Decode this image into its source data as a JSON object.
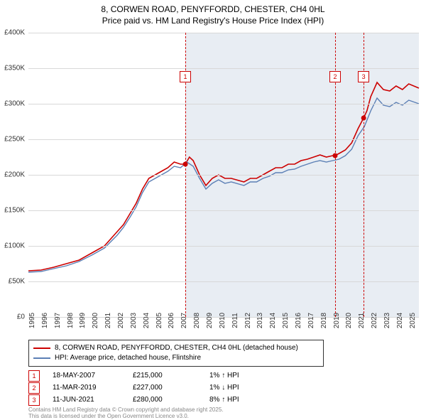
{
  "title_line1": "8, CORWEN ROAD, PENYFFORDD, CHESTER, CH4 0HL",
  "title_line2": "Price paid vs. HM Land Registry's House Price Index (HPI)",
  "chart": {
    "type": "line",
    "background_color": "#ffffff",
    "shaded_background_color": "#e8edf3",
    "grid_color": "#d8d8d8",
    "x_min": 1995,
    "x_max": 2025.8,
    "x_ticks": [
      1995,
      1996,
      1997,
      1998,
      1999,
      2000,
      2001,
      2002,
      2003,
      2004,
      2005,
      2006,
      2007,
      2008,
      2009,
      2010,
      2011,
      2012,
      2013,
      2014,
      2015,
      2016,
      2017,
      2018,
      2019,
      2020,
      2021,
      2022,
      2023,
      2024,
      2025
    ],
    "y_min": 0,
    "y_max": 400,
    "y_ticks": [
      0,
      50,
      100,
      150,
      200,
      250,
      300,
      350,
      400
    ],
    "y_tick_labels": [
      "£0",
      "£50K",
      "£100K",
      "£150K",
      "£200K",
      "£250K",
      "£300K",
      "£350K",
      "£400K"
    ],
    "axis_fontsize": 10,
    "series": [
      {
        "name": "8, CORWEN ROAD, PENYFFORDD, CHESTER, CH4 0HL (detached house)",
        "color": "#cc0000",
        "line_width": 1.6,
        "points": [
          [
            1995,
            65
          ],
          [
            1996,
            66
          ],
          [
            1997,
            70
          ],
          [
            1998,
            75
          ],
          [
            1999,
            80
          ],
          [
            2000,
            90
          ],
          [
            2001,
            100
          ],
          [
            2002,
            120
          ],
          [
            2002.5,
            130
          ],
          [
            2003,
            145
          ],
          [
            2003.5,
            160
          ],
          [
            2004,
            180
          ],
          [
            2004.5,
            195
          ],
          [
            2005,
            200
          ],
          [
            2005.5,
            205
          ],
          [
            2006,
            210
          ],
          [
            2006.5,
            218
          ],
          [
            2007,
            215
          ],
          [
            2007.38,
            215
          ],
          [
            2007.7,
            225
          ],
          [
            2008,
            220
          ],
          [
            2008.5,
            200
          ],
          [
            2009,
            185
          ],
          [
            2009.5,
            195
          ],
          [
            2010,
            200
          ],
          [
            2010.5,
            195
          ],
          [
            2011,
            195
          ],
          [
            2012,
            190
          ],
          [
            2012.5,
            195
          ],
          [
            2013,
            195
          ],
          [
            2013.5,
            200
          ],
          [
            2014,
            205
          ],
          [
            2014.5,
            210
          ],
          [
            2015,
            210
          ],
          [
            2015.5,
            215
          ],
          [
            2016,
            215
          ],
          [
            2016.5,
            220
          ],
          [
            2017,
            222
          ],
          [
            2017.5,
            225
          ],
          [
            2018,
            228
          ],
          [
            2018.5,
            225
          ],
          [
            2019,
            227
          ],
          [
            2019.19,
            227
          ],
          [
            2019.5,
            230
          ],
          [
            2020,
            235
          ],
          [
            2020.5,
            245
          ],
          [
            2021,
            265
          ],
          [
            2021.44,
            280
          ],
          [
            2021.7,
            290
          ],
          [
            2022,
            310
          ],
          [
            2022.5,
            330
          ],
          [
            2023,
            320
          ],
          [
            2023.5,
            318
          ],
          [
            2024,
            325
          ],
          [
            2024.5,
            320
          ],
          [
            2025,
            328
          ],
          [
            2025.8,
            322
          ]
        ]
      },
      {
        "name": "HPI: Average price, detached house, Flintshire",
        "color": "#5b7fb5",
        "line_width": 1.4,
        "points": [
          [
            1995,
            63
          ],
          [
            1996,
            64
          ],
          [
            1997,
            68
          ],
          [
            1998,
            72
          ],
          [
            1999,
            78
          ],
          [
            2000,
            87
          ],
          [
            2001,
            97
          ],
          [
            2002,
            115
          ],
          [
            2002.5,
            126
          ],
          [
            2003,
            140
          ],
          [
            2003.5,
            155
          ],
          [
            2004,
            175
          ],
          [
            2004.5,
            190
          ],
          [
            2005,
            195
          ],
          [
            2005.5,
            200
          ],
          [
            2006,
            205
          ],
          [
            2006.5,
            212
          ],
          [
            2007,
            210
          ],
          [
            2007.5,
            218
          ],
          [
            2008,
            212
          ],
          [
            2008.5,
            195
          ],
          [
            2009,
            180
          ],
          [
            2009.5,
            188
          ],
          [
            2010,
            193
          ],
          [
            2010.5,
            188
          ],
          [
            2011,
            190
          ],
          [
            2012,
            185
          ],
          [
            2012.5,
            190
          ],
          [
            2013,
            190
          ],
          [
            2013.5,
            195
          ],
          [
            2014,
            198
          ],
          [
            2014.5,
            203
          ],
          [
            2015,
            203
          ],
          [
            2015.5,
            207
          ],
          [
            2016,
            208
          ],
          [
            2016.5,
            212
          ],
          [
            2017,
            215
          ],
          [
            2017.5,
            218
          ],
          [
            2018,
            220
          ],
          [
            2018.5,
            218
          ],
          [
            2019,
            220
          ],
          [
            2019.5,
            222
          ],
          [
            2020,
            227
          ],
          [
            2020.5,
            236
          ],
          [
            2021,
            255
          ],
          [
            2021.5,
            268
          ],
          [
            2022,
            290
          ],
          [
            2022.5,
            308
          ],
          [
            2023,
            298
          ],
          [
            2023.5,
            296
          ],
          [
            2024,
            302
          ],
          [
            2024.5,
            298
          ],
          [
            2025,
            305
          ],
          [
            2025.8,
            300
          ]
        ]
      }
    ],
    "markers": [
      {
        "num": "1",
        "x": 2007.38,
        "y": 215,
        "label_top": 54
      },
      {
        "num": "2",
        "x": 2019.19,
        "y": 227,
        "label_top": 54
      },
      {
        "num": "3",
        "x": 2021.44,
        "y": 280,
        "label_top": 54
      }
    ],
    "sale_dot_color": "#cc0000",
    "sale_dot_radius": 3.5
  },
  "legend": {
    "border_color": "#333333",
    "fontsize": 10
  },
  "events": [
    {
      "num": "1",
      "date": "18-MAY-2007",
      "price": "£215,000",
      "change": "1% ↑ HPI"
    },
    {
      "num": "2",
      "date": "11-MAR-2019",
      "price": "£227,000",
      "change": "1% ↓ HPI"
    },
    {
      "num": "3",
      "date": "11-JUN-2021",
      "price": "£280,000",
      "change": "8% ↑ HPI"
    }
  ],
  "footer_line1": "Contains HM Land Registry data © Crown copyright and database right 2025.",
  "footer_line2": "This data is licensed under the Open Government Licence v3.0."
}
